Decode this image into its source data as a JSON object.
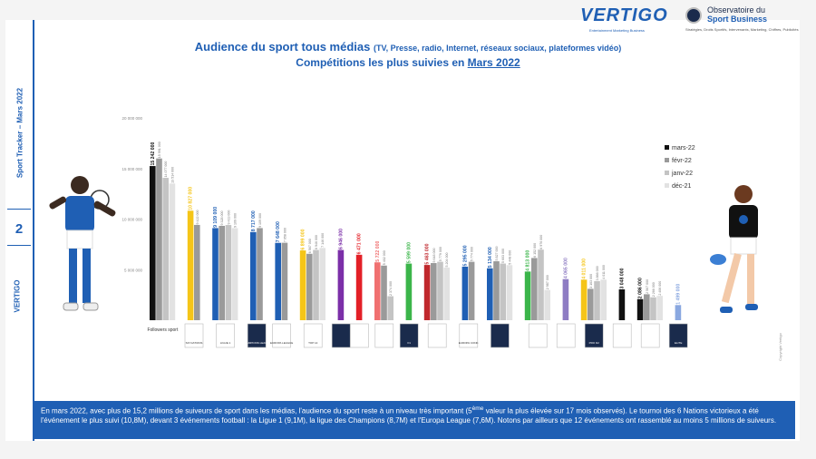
{
  "sidebar": {
    "tracker_label": "Sport Tracker – Mars 2022",
    "page_number": "2",
    "brand": "VERTIGO"
  },
  "logos": {
    "vertigo": "VERTIGO",
    "vertigo_tagline": "Entertainment Marketing Business",
    "observatoire_line1": "Observatoire du",
    "observatoire_line2": "Sport Business",
    "observatoire_tagline": "Stratégies, Droits Sportifs, Intervenants, Marketing, Chiffres, Publicités"
  },
  "chart_data": {
    "type": "bar",
    "title": "Audience du sport tous médias",
    "title_suffix": "(TV, Presse, radio, Internet, réseaux sociaux, plateformes vidéo)",
    "subtitle_prefix": "Compétitions les plus suivies en",
    "subtitle_month": "Mars 2022",
    "yticks": [
      "20 000 000",
      "15 000 000",
      "10 000 000",
      "5 000 000"
    ],
    "ylim": [
      0,
      20000000
    ],
    "grid": false,
    "legend": [
      "mars-22",
      "févr-22",
      "janv-22",
      "déc-21"
    ],
    "legend_position": "right",
    "series_colors": [
      "#111111",
      "#9a9a9a",
      "#c4c4c4",
      "#e2e2e2"
    ],
    "groups": [
      {
        "name": "Followers sport",
        "color": "#111111",
        "labels": [
          "15 242 000",
          "15 991 000",
          "14 077 000",
          "13 514 000"
        ],
        "values": [
          15242000,
          15991000,
          14077000,
          13514000
        ]
      },
      {
        "name": "",
        "color": "#f5c518",
        "labels": [
          "10 827 000",
          "9 422 000"
        ],
        "values": [
          10827000,
          9422000
        ]
      },
      {
        "name": "",
        "color": "#1f5fb4",
        "labels": [
          "9 109 000",
          "9 328 000",
          "9 413 000",
          "9 109 000"
        ],
        "values": [
          9109000,
          9328000,
          9413000,
          9109000
        ]
      },
      {
        "name": "",
        "color": "#1f5fb4",
        "labels": [
          "8 717 000",
          "9 109 000"
        ],
        "values": [
          8717000,
          9109000
        ]
      },
      {
        "name": "",
        "color": "#1f5fb4",
        "labels": [
          "7 648 000",
          "7 658 000"
        ],
        "values": [
          7648000,
          7658000
        ]
      },
      {
        "name": "",
        "color": "#f5c518",
        "labels": [
          "6 899 000",
          "6 567 000",
          "6 946 000",
          "7 146 000"
        ],
        "values": [
          6899000,
          6567000,
          6946000,
          7146000
        ]
      },
      {
        "name": "",
        "color": "#7b2fa8",
        "labels": [
          "6 946 000"
        ],
        "values": [
          6946000
        ]
      },
      {
        "name": "",
        "color": "#e32027",
        "labels": [
          "6 471 000"
        ],
        "values": [
          6471000
        ]
      },
      {
        "name": "",
        "color": "#f07070",
        "labels": [
          "5 722 000",
          "5 402 000",
          "2 374 000"
        ],
        "values": [
          5722000,
          5402000,
          2374000
        ]
      },
      {
        "name": "",
        "color": "#3bb54a",
        "labels": [
          "5 599 000"
        ],
        "values": [
          5599000
        ]
      },
      {
        "name": "",
        "color": "#c0282d",
        "labels": [
          "5 463 000",
          "5 648 000",
          "5 779 000",
          "5 204 000"
        ],
        "values": [
          5463000,
          5648000,
          5779000,
          5204000
        ]
      },
      {
        "name": "",
        "color": "#1f5fb4",
        "labels": [
          "5 295 000",
          "5 774 000"
        ],
        "values": [
          5295000,
          5774000
        ]
      },
      {
        "name": "",
        "color": "#1f5fb4",
        "labels": [
          "5 134 000",
          "5 827 000",
          "5 603 000",
          "5 448 000"
        ],
        "values": [
          5134000,
          5827000,
          5603000,
          5448000
        ]
      },
      {
        "name": "",
        "color": "#3bb54a",
        "labels": [
          "4 813 000",
          "6 152 000",
          "6 976 000",
          "2 987 000"
        ],
        "values": [
          4813000,
          6152000,
          6976000,
          2987000
        ]
      },
      {
        "name": "",
        "color": "#8e7cc3",
        "labels": [
          "4 065 000"
        ],
        "values": [
          4065000
        ]
      },
      {
        "name": "",
        "color": "#f5c518",
        "labels": [
          "4 011 000",
          "3 103 000",
          "3 866 000",
          "4 011 000"
        ],
        "values": [
          4011000,
          3103000,
          3866000,
          4011000
        ]
      },
      {
        "name": "",
        "color": "#111111",
        "labels": [
          "3 048 000"
        ],
        "values": [
          3048000
        ]
      },
      {
        "name": "",
        "color": "#111111",
        "labels": [
          "2 086 000",
          "2 567 000",
          "2 266 000",
          "2 406 000"
        ],
        "values": [
          2086000,
          2567000,
          2266000,
          2406000
        ]
      },
      {
        "name": "",
        "color": "#8aa8e0",
        "labels": [
          "1 499 000"
        ],
        "values": [
          1499000
        ]
      }
    ],
    "logo_labels": [
      "SIX NATIONS",
      "LIGUE 1",
      "CHAMPIONS LEAGUE",
      "EUROPA LEAGUE",
      "TOP 14",
      "",
      "",
      "",
      "F1",
      "",
      "EUROPA CONF.",
      "",
      "",
      "",
      "PRO D2",
      "",
      "",
      "ELITE",
      ""
    ]
  },
  "footer": {
    "text_before": "En mars 2022, avec plus de 15,2 millions de suiveurs de sport dans les médias, l'audience du sport reste à un niveau très important (5",
    "sup": "ème",
    "text_after": " valeur la plus élevée sur 17 mois observés). Le tournoi des 6 Nations victorieux a été l'événement le plus suivi (10,8M), devant 3 événements football : la Ligue 1 (9,1M), la ligue des Champions (8,7M) et l'Europa League (7,6M). Notons par ailleurs que 12 événements ont rassemblé au moins 5 millions de suiveurs."
  },
  "copyright": "Copyright Vertigo"
}
